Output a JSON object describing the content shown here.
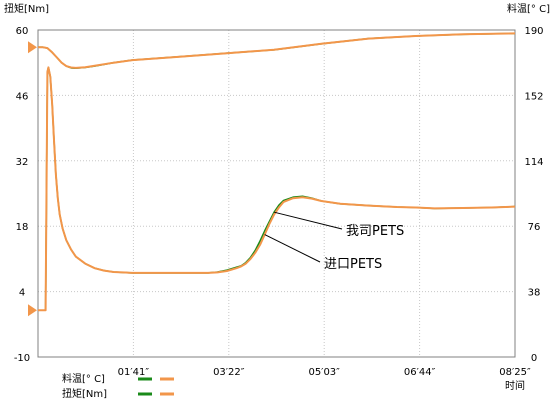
{
  "chart_data": {
    "type": "line",
    "left_axis_label": "扭矩[Nm]",
    "right_axis_label": "料温[° C]",
    "x_axis_label": "时间",
    "left_ticks": [
      "60",
      "46",
      "32",
      "18",
      "4",
      "-10"
    ],
    "right_ticks": [
      "190",
      "152",
      "114",
      "76",
      "38",
      "0"
    ],
    "x_ticks": [
      "01′41″",
      "03′22″",
      "05′03″",
      "06′44″",
      "08′25″"
    ],
    "ylim_left": [
      -10,
      60
    ],
    "ylim_right": [
      0,
      190
    ],
    "xlim_seconds": [
      0,
      505
    ],
    "grid": true,
    "legend": {
      "position": "bottom-left",
      "entries": [
        {
          "label": "料温[° C]",
          "colors": [
            "#1a8a1a",
            "#f2964a"
          ]
        },
        {
          "label": "扭矩[Nm]",
          "colors": [
            "#1a8a1a",
            "#f2964a"
          ]
        }
      ]
    },
    "annotations": [
      {
        "text": "我司PETS",
        "series": "torque_ours",
        "at_x": 250
      },
      {
        "text": "进口PETS",
        "series": "torque_imported",
        "at_x": 240
      }
    ],
    "series": [
      {
        "color": "#1a8a1a",
        "axis": "right",
        "x": [
          0,
          5,
          10,
          15,
          20,
          25,
          30,
          35,
          40,
          50,
          60,
          80,
          100,
          150,
          200,
          250,
          300,
          350,
          400,
          450,
          505
        ],
        "y": [
          180,
          180,
          179.5,
          177,
          174,
          171,
          169,
          168,
          167.8,
          168.2,
          169,
          171,
          172.5,
          174.5,
          176.5,
          178.5,
          182,
          185,
          186.5,
          187.5,
          188
        ]
      },
      {
        "color": "#f2964a",
        "axis": "right",
        "x": [
          0,
          5,
          10,
          15,
          20,
          25,
          30,
          35,
          40,
          50,
          60,
          80,
          100,
          150,
          200,
          250,
          300,
          350,
          400,
          450,
          505
        ],
        "y": [
          180,
          180,
          179.5,
          177,
          174,
          171,
          169,
          168.2,
          168,
          168.4,
          169.2,
          171,
          172.5,
          174.5,
          176.5,
          178.5,
          182,
          185,
          186.5,
          187.5,
          188
        ]
      },
      {
        "color": "#1a8a1a",
        "axis": "left",
        "x": [
          8,
          10,
          11,
          13,
          15,
          17,
          19,
          21,
          23,
          26,
          30,
          35,
          40,
          50,
          60,
          70,
          80,
          100,
          120,
          150,
          180,
          190,
          200,
          210,
          215,
          220,
          225,
          230,
          235,
          240,
          245,
          250,
          255,
          260,
          270,
          280,
          290,
          300,
          320,
          350,
          380,
          400,
          420,
          450,
          480,
          505
        ],
        "y": [
          0,
          51,
          52,
          50,
          44,
          36,
          29,
          24,
          20.5,
          17.5,
          15,
          13,
          11.5,
          10,
          9,
          8.5,
          8.2,
          8,
          8,
          8,
          8,
          8.2,
          8.6,
          9.2,
          9.5,
          10.2,
          11.3,
          12.8,
          14.8,
          17,
          19,
          21,
          22.5,
          23.5,
          24.2,
          24.4,
          24,
          23.4,
          22.8,
          22.4,
          22.1,
          22,
          21.8,
          21.9,
          22,
          22.2
        ]
      },
      {
        "color": "#f2964a",
        "axis": "left",
        "x": [
          0,
          5,
          8,
          10,
          11,
          13,
          15,
          17,
          19,
          21,
          23,
          26,
          30,
          35,
          40,
          50,
          60,
          70,
          80,
          100,
          120,
          150,
          180,
          190,
          200,
          210,
          215,
          220,
          225,
          230,
          235,
          240,
          245,
          250,
          255,
          260,
          270,
          280,
          290,
          300,
          320,
          350,
          380,
          400,
          420,
          450,
          480,
          505
        ],
        "y": [
          0,
          0,
          0,
          51,
          52,
          50,
          44,
          36,
          29,
          24,
          20.5,
          17.5,
          15,
          13,
          11.5,
          10,
          9,
          8.5,
          8.2,
          8,
          8,
          8,
          8,
          8.1,
          8.4,
          9,
          9.4,
          10,
          11,
          12.3,
          14,
          16.2,
          18.5,
          20.5,
          22,
          23.2,
          24,
          24.2,
          23.9,
          23.4,
          22.8,
          22.4,
          22.1,
          22,
          21.8,
          21.9,
          22,
          22.2
        ]
      }
    ]
  }
}
